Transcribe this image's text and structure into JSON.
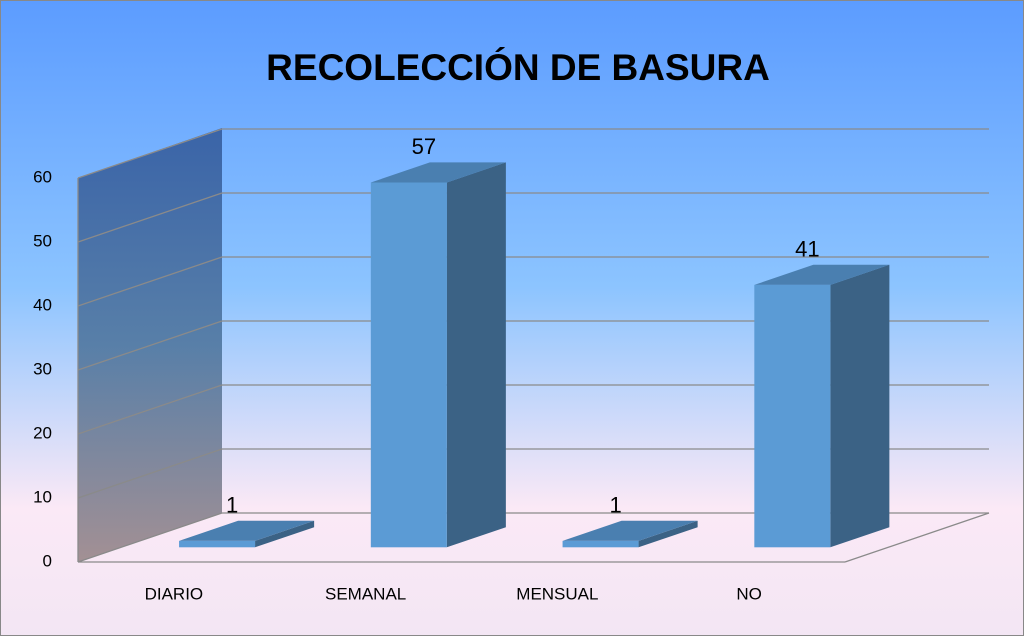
{
  "chart_data": {
    "type": "bar3d",
    "title": "RECOLECCIÓN DE BASURA",
    "categories": [
      "DIARIO",
      "SEMANAL",
      "MENSUAL",
      "NO"
    ],
    "values": [
      1,
      57,
      1,
      41
    ],
    "color": "#5b9bd5",
    "ylim": [
      0,
      60
    ],
    "yticks": [
      0,
      10,
      20,
      30,
      40,
      50,
      60
    ],
    "grid": true
  }
}
